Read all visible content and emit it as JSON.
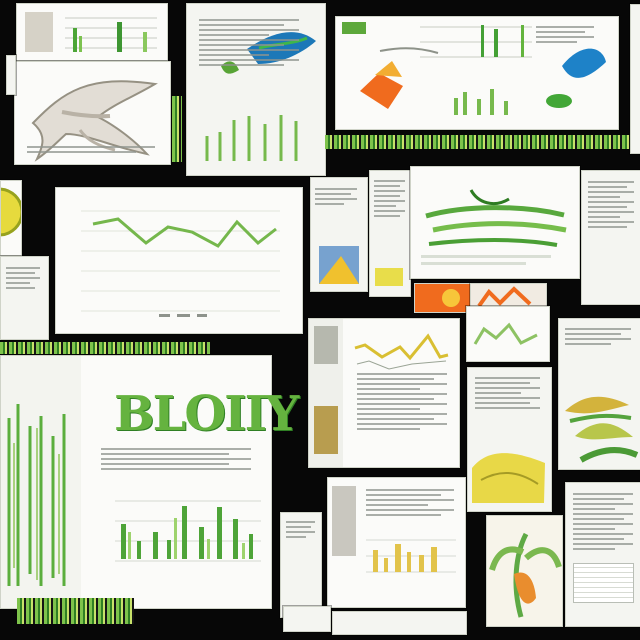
{
  "collage": {
    "headline": "BLOIIY",
    "colors": {
      "background": "#070707",
      "paper": "#f4f5f1",
      "green": "#63b43d",
      "dark_green": "#2f7f24",
      "yellow": "#e8d847",
      "orange": "#f06b1e",
      "blue": "#1e82c8"
    }
  }
}
